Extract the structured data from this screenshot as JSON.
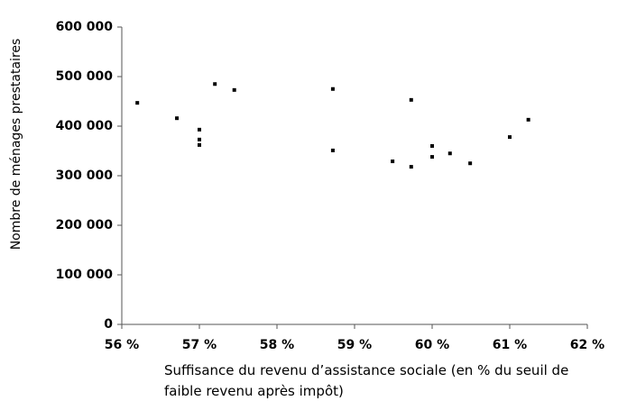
{
  "chart_data": {
    "type": "scatter",
    "x_label": "Suffisance du revenu d’assistance sociale (en % du seuil de faible revenu après impôt)",
    "y_label": "Nombre de ménages prestataires",
    "x": [
      56.2,
      56.71,
      57.0,
      57.0,
      57.0,
      57.2,
      57.45,
      58.72,
      58.72,
      59.49,
      59.73,
      59.73,
      60.0,
      60.0,
      60.23,
      60.49,
      61.0,
      61.24
    ],
    "values": [
      447000,
      416000,
      393000,
      373000,
      362000,
      485000,
      473000,
      475000,
      351000,
      329000,
      453000,
      318000,
      360000,
      338000,
      345000,
      325000,
      378000,
      413000
    ],
    "color": "#000000",
    "xlim": [
      56,
      62
    ],
    "xticks": [
      {
        "value": 56,
        "label": "56 %"
      },
      {
        "value": 57,
        "label": "57 %"
      },
      {
        "value": 58,
        "label": "58 %"
      },
      {
        "value": 59,
        "label": "59 %"
      },
      {
        "value": 60,
        "label": "60 %"
      },
      {
        "value": 61,
        "label": "61 %"
      },
      {
        "value": 62,
        "label": "62 %"
      }
    ],
    "ylim": [
      0,
      600000
    ],
    "yticks": [
      0,
      {
        "value": 100000,
        "label": "100 000"
      },
      {
        "value": 200000,
        "label": "200 000"
      },
      {
        "value": 300000,
        "label": "300 000"
      },
      {
        "value": 400000,
        "label": "400 000"
      },
      {
        "value": 500000,
        "label": "500 000"
      },
      {
        "value": 600000,
        "label": "600 000"
      }
    ],
    "grid": false
  }
}
